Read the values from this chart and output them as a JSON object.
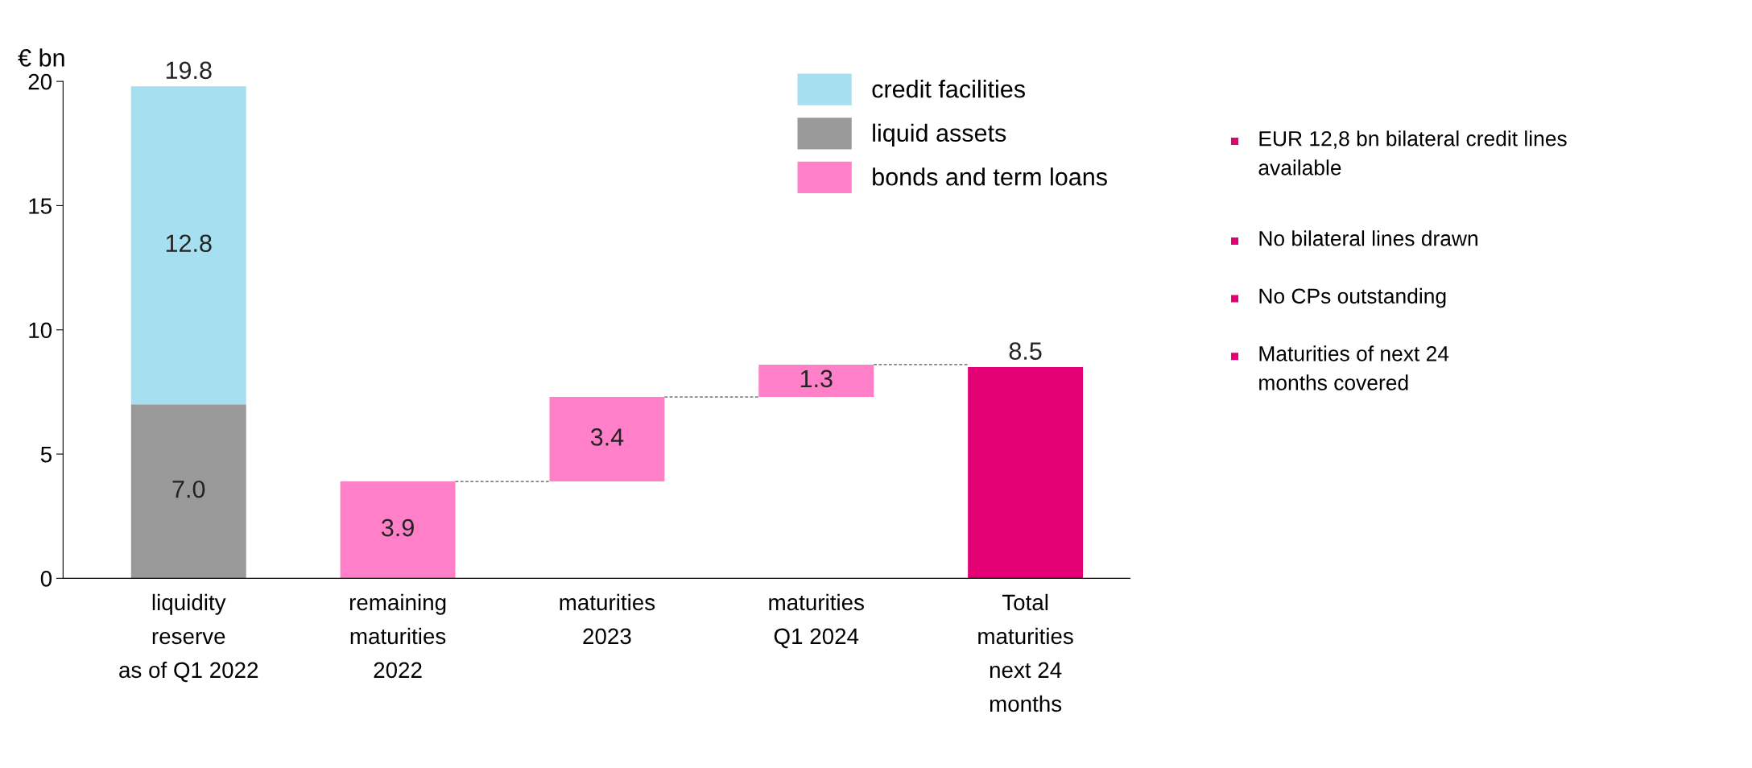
{
  "chart_data": {
    "type": "bar",
    "stacked": true,
    "ylabel": "€ bn",
    "categories": [
      "liquidity\nreserve\nas of Q1 2022",
      "remaining\nmaturities\n2022",
      "maturities\n2023",
      "maturities\nQ1 2024",
      "Total\nmaturities\nnext 24\nmonths"
    ],
    "series": [
      {
        "name": "liquid assets",
        "color": "#999999",
        "values": [
          7.0,
          null,
          null,
          null,
          null
        ],
        "value_labels": [
          "7.0",
          null,
          null,
          null,
          null
        ]
      },
      {
        "name": "credit facilities",
        "color": "#a6dff0",
        "values": [
          12.8,
          null,
          null,
          null,
          null
        ],
        "value_labels": [
          "12.8",
          null,
          null,
          null,
          null
        ]
      },
      {
        "name": "bonds and term loans",
        "color": "#ff80c8",
        "values": [
          null,
          3.9,
          3.4,
          1.3,
          null
        ],
        "base": [
          null,
          0,
          3.9,
          7.3,
          null
        ],
        "value_labels": [
          null,
          "3.9",
          "3.4",
          "1.3",
          null
        ]
      },
      {
        "color": "#e20074",
        "values": [
          null,
          null,
          null,
          null,
          8.5
        ]
      }
    ],
    "totals": [
      "19.8",
      null,
      null,
      null,
      "8.5"
    ],
    "ylim": [
      0,
      20
    ],
    "yticks": [
      0,
      5,
      10,
      15,
      20
    ],
    "grid": false,
    "legend": "top right",
    "annotations": [
      "EUR 12,8 bn bilateral credit lines\navailable",
      "No bilateral lines drawn",
      "No CPs outstanding",
      "Maturities of next 24\nmonths covered"
    ]
  }
}
